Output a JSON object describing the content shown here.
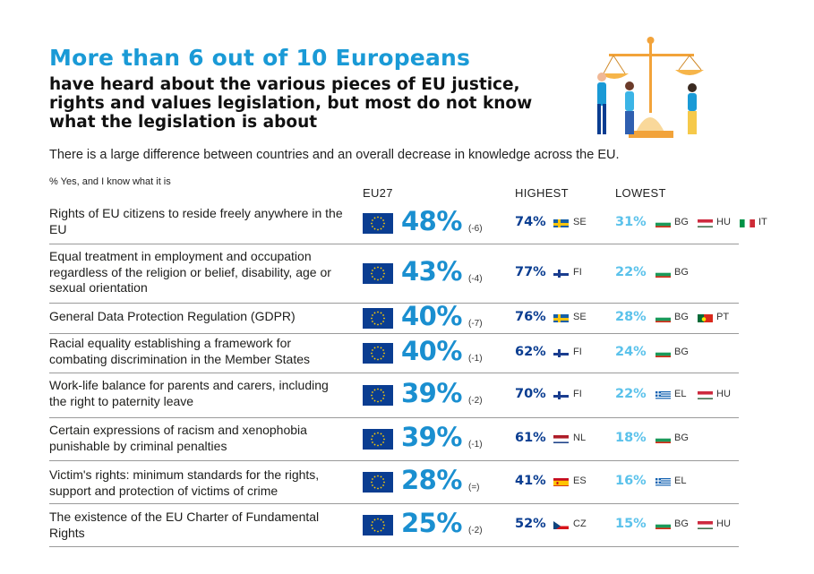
{
  "header": {
    "title_main": "More than 6 out of 10 Europeans",
    "title_sub": "have heard about the various pieces of EU justice, rights and values legislation, but most do not know what the legislation is about",
    "subtitle": "There is a large difference between countries and an overall decrease in knowledge across the EU.",
    "note": "% Yes, and I know what it is"
  },
  "columns": {
    "eu": "EU27",
    "highest": "HIGHEST",
    "lowest": "LOWEST"
  },
  "colors": {
    "accent_blue": "#1a9ad6",
    "dark_blue": "#0a3d91",
    "light_blue": "#5bc2eb",
    "eu_flag": "#0a3d91",
    "star": "#ffcc00"
  },
  "rows": [
    {
      "label": "Rights of EU citizens to reside freely anywhere in the EU",
      "eu": "48%",
      "change": "(-6)",
      "high": {
        "pct": "74%",
        "code": "SE"
      },
      "low": {
        "pct": "31%",
        "countries": [
          {
            "code": "BG"
          },
          {
            "code": "HU"
          },
          {
            "code": "IT"
          }
        ]
      }
    },
    {
      "label": "Equal treatment in employment and occupation regardless of the religion or belief, disability, age or sexual orientation",
      "eu": "43%",
      "change": "(-4)",
      "high": {
        "pct": "77%",
        "code": "FI"
      },
      "low": {
        "pct": "22%",
        "countries": [
          {
            "code": "BG"
          }
        ]
      }
    },
    {
      "label": "General Data Protection Regulation (GDPR)",
      "eu": "40%",
      "change": "(-7)",
      "high": {
        "pct": "76%",
        "code": "SE"
      },
      "low": {
        "pct": "28%",
        "countries": [
          {
            "code": "BG"
          },
          {
            "code": "PT"
          }
        ]
      }
    },
    {
      "label": "Racial equality establishing a framework for combating discrimination in the Member States",
      "eu": "40%",
      "change": "(-1)",
      "high": {
        "pct": "62%",
        "code": "FI"
      },
      "low": {
        "pct": "24%",
        "countries": [
          {
            "code": "BG"
          }
        ]
      }
    },
    {
      "label": "Work-life balance for parents and carers, including the right to paternity leave",
      "eu": "39%",
      "change": "(-2)",
      "high": {
        "pct": "70%",
        "code": "FI"
      },
      "low": {
        "pct": "22%",
        "countries": [
          {
            "code": "EL"
          },
          {
            "code": "HU"
          }
        ]
      }
    },
    {
      "label": "Certain expressions of racism and xenophobia punishable by criminal penalties",
      "eu": "39%",
      "change": "(-1)",
      "high": {
        "pct": "61%",
        "code": "NL"
      },
      "low": {
        "pct": "18%",
        "countries": [
          {
            "code": "BG"
          }
        ]
      }
    },
    {
      "label": "Victim's rights: minimum standards for the rights, support and protection of victims of crime",
      "eu": "28%",
      "change": "(=)",
      "high": {
        "pct": "41%",
        "code": "ES"
      },
      "low": {
        "pct": "16%",
        "countries": [
          {
            "code": "EL"
          }
        ]
      }
    },
    {
      "label": "The existence of the EU Charter of Fundamental Rights",
      "eu": "25%",
      "change": "(-2)",
      "high": {
        "pct": "52%",
        "code": "CZ"
      },
      "low": {
        "pct": "15%",
        "countries": [
          {
            "code": "BG"
          },
          {
            "code": "HU"
          }
        ]
      }
    }
  ]
}
